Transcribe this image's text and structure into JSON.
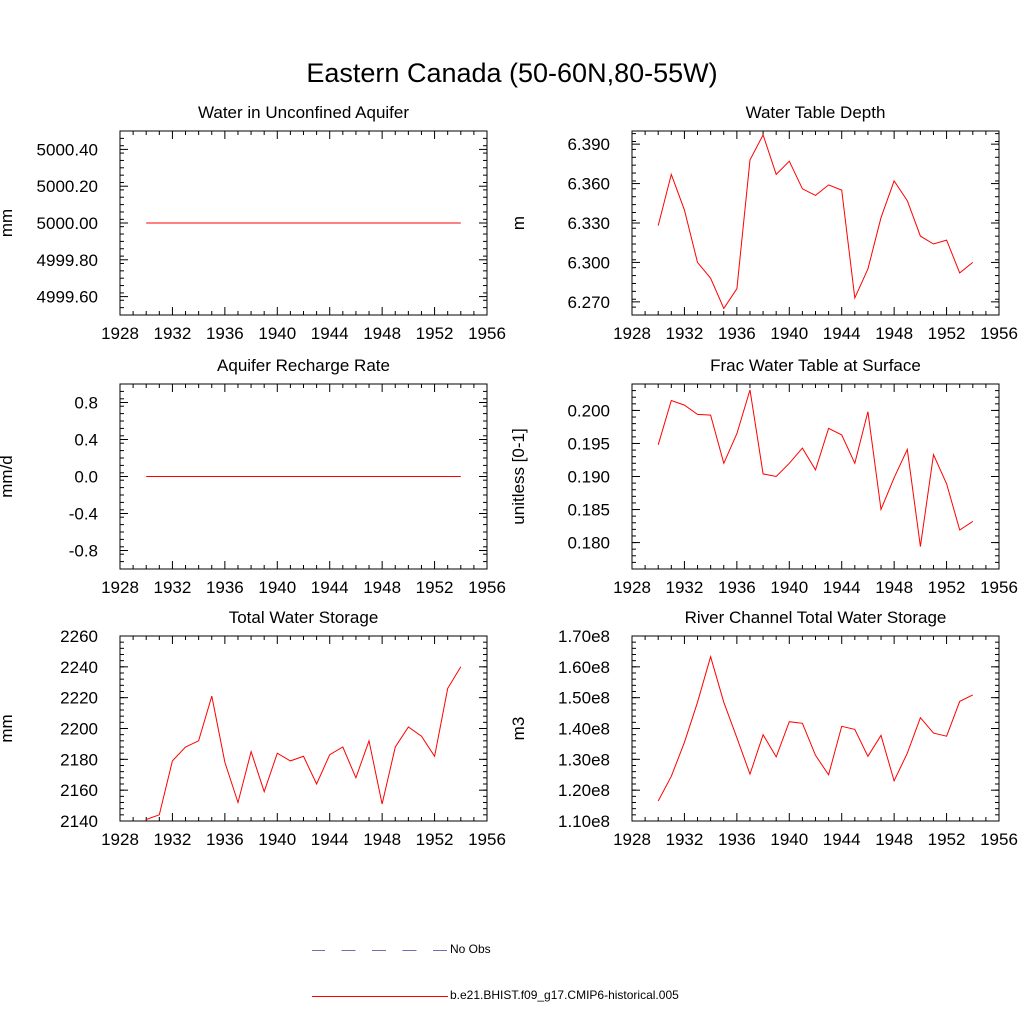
{
  "title": "Eastern Canada (50-60N,80-55W)",
  "colors": {
    "model": "#ff0000",
    "obs": "#6f6fb0",
    "axis": "#000000"
  },
  "legend": {
    "obs_label": "No Obs",
    "model_label": "b.e21.BHIST.f09_g17.CMIP6-historical.005"
  },
  "chart_data": [
    {
      "type": "line",
      "title": "Water in Unconfined Aquifer",
      "xlabel": "",
      "ylabel": "mm",
      "xlim": [
        1928,
        1956
      ],
      "ylim": [
        4999.5,
        5000.5
      ],
      "xticks": [
        1928,
        1932,
        1936,
        1940,
        1944,
        1948,
        1952,
        1956
      ],
      "yticks": [
        4999.6,
        4999.8,
        5000.0,
        5000.2,
        5000.4
      ],
      "ytick_labels": [
        "4999.60",
        "4999.80",
        "5000.00",
        "5000.20",
        "5000.40"
      ],
      "x": [
        1930,
        1931,
        1932,
        1933,
        1934,
        1935,
        1936,
        1937,
        1938,
        1939,
        1940,
        1941,
        1942,
        1943,
        1944,
        1945,
        1946,
        1947,
        1948,
        1949,
        1950,
        1951,
        1952,
        1953,
        1954
      ],
      "series": [
        {
          "values": [
            5000,
            5000,
            5000,
            5000,
            5000,
            5000,
            5000,
            5000,
            5000,
            5000,
            5000,
            5000,
            5000,
            5000,
            5000,
            5000,
            5000,
            5000,
            5000,
            5000,
            5000,
            5000,
            5000,
            5000,
            5000
          ]
        }
      ]
    },
    {
      "type": "line",
      "title": "Water Table Depth",
      "xlabel": "",
      "ylabel": "m",
      "xlim": [
        1928,
        1956
      ],
      "ylim": [
        6.26,
        6.4
      ],
      "xticks": [
        1928,
        1932,
        1936,
        1940,
        1944,
        1948,
        1952,
        1956
      ],
      "yticks": [
        6.27,
        6.3,
        6.33,
        6.36,
        6.39
      ],
      "ytick_labels": [
        "6.270",
        "6.300",
        "6.330",
        "6.360",
        "6.390"
      ],
      "x": [
        1930,
        1931,
        1932,
        1933,
        1934,
        1935,
        1936,
        1937,
        1938,
        1939,
        1940,
        1941,
        1942,
        1943,
        1944,
        1945,
        1946,
        1947,
        1948,
        1949,
        1950,
        1951,
        1952,
        1953,
        1954
      ],
      "series": [
        {
          "values": [
            6.328,
            6.367,
            6.34,
            6.3,
            6.288,
            6.265,
            6.28,
            6.378,
            6.397,
            6.367,
            6.377,
            6.356,
            6.351,
            6.359,
            6.355,
            6.273,
            6.295,
            6.334,
            6.362,
            6.347,
            6.32,
            6.314,
            6.317,
            6.292,
            6.3
          ]
        }
      ]
    },
    {
      "type": "line",
      "title": "Aquifer Recharge Rate",
      "xlabel": "",
      "ylabel": "mm/d",
      "xlim": [
        1928,
        1956
      ],
      "ylim": [
        -1.0,
        1.0
      ],
      "xticks": [
        1928,
        1932,
        1936,
        1940,
        1944,
        1948,
        1952,
        1956
      ],
      "yticks": [
        -0.8,
        -0.4,
        0.0,
        0.4,
        0.8
      ],
      "ytick_labels": [
        "-0.8",
        "-0.4",
        "0.0",
        "0.4",
        "0.8"
      ],
      "x": [
        1930,
        1931,
        1932,
        1933,
        1934,
        1935,
        1936,
        1937,
        1938,
        1939,
        1940,
        1941,
        1942,
        1943,
        1944,
        1945,
        1946,
        1947,
        1948,
        1949,
        1950,
        1951,
        1952,
        1953,
        1954
      ],
      "series": [
        {
          "values": [
            0,
            0,
            0,
            0,
            0,
            0,
            0,
            0,
            0,
            0,
            0,
            0,
            0,
            0,
            0,
            0,
            0,
            0,
            0,
            0,
            0,
            0,
            0,
            0,
            0
          ]
        }
      ]
    },
    {
      "type": "line",
      "title": "Frac Water Table at Surface",
      "xlabel": "",
      "ylabel": "unitless [0-1]",
      "xlim": [
        1928,
        1956
      ],
      "ylim": [
        0.176,
        0.204
      ],
      "xticks": [
        1928,
        1932,
        1936,
        1940,
        1944,
        1948,
        1952,
        1956
      ],
      "yticks": [
        0.18,
        0.185,
        0.19,
        0.195,
        0.2
      ],
      "ytick_labels": [
        "0.180",
        "0.185",
        "0.190",
        "0.195",
        "0.200"
      ],
      "x": [
        1930,
        1931,
        1932,
        1933,
        1934,
        1935,
        1936,
        1937,
        1938,
        1939,
        1940,
        1941,
        1942,
        1943,
        1944,
        1945,
        1946,
        1947,
        1948,
        1949,
        1950,
        1951,
        1952,
        1953,
        1954
      ],
      "series": [
        {
          "values": [
            0.1948,
            0.2015,
            0.2008,
            0.1994,
            0.1993,
            0.192,
            0.1965,
            0.2031,
            0.1904,
            0.19,
            0.192,
            0.1943,
            0.191,
            0.1973,
            0.1963,
            0.192,
            0.1998,
            0.185,
            0.1898,
            0.1941,
            0.1794,
            0.1933,
            0.1889,
            0.1819,
            0.1832
          ]
        }
      ]
    },
    {
      "type": "line",
      "title": "Total Water Storage",
      "xlabel": "",
      "ylabel": "mm",
      "xlim": [
        1928,
        1956
      ],
      "ylim": [
        2140,
        2260
      ],
      "xticks": [
        1928,
        1932,
        1936,
        1940,
        1944,
        1948,
        1952,
        1956
      ],
      "yticks": [
        2140,
        2160,
        2180,
        2200,
        2220,
        2240,
        2260
      ],
      "ytick_labels": [
        "2140",
        "2160",
        "2180",
        "2200",
        "2220",
        "2240",
        "2260"
      ],
      "x": [
        1930,
        1931,
        1932,
        1933,
        1934,
        1935,
        1936,
        1937,
        1938,
        1939,
        1940,
        1941,
        1942,
        1943,
        1944,
        1945,
        1946,
        1947,
        1948,
        1949,
        1950,
        1951,
        1952,
        1953,
        1954
      ],
      "series": [
        {
          "values": [
            2141,
            2144,
            2179,
            2188,
            2192,
            2221,
            2178,
            2152,
            2185,
            2159,
            2184,
            2179,
            2182,
            2164,
            2183,
            2188,
            2168,
            2192,
            2151,
            2188,
            2201,
            2195,
            2182,
            2226,
            2240
          ]
        }
      ]
    },
    {
      "type": "line",
      "title": "River Channel Total Water Storage",
      "xlabel": "",
      "ylabel": "m3",
      "xlim": [
        1928,
        1956
      ],
      "ylim": [
        110000000.0,
        170000000.0
      ],
      "xticks": [
        1928,
        1932,
        1936,
        1940,
        1944,
        1948,
        1952,
        1956
      ],
      "yticks": [
        110000000.0,
        120000000.0,
        130000000.0,
        140000000.0,
        150000000.0,
        160000000.0,
        170000000.0
      ],
      "ytick_labels": [
        "1.10e8",
        "1.20e8",
        "1.30e8",
        "1.40e8",
        "1.50e8",
        "1.60e8",
        "1.70e8"
      ],
      "x": [
        1930,
        1931,
        1932,
        1933,
        1934,
        1935,
        1936,
        1937,
        1938,
        1939,
        1940,
        1941,
        1942,
        1943,
        1944,
        1945,
        1946,
        1947,
        1948,
        1949,
        1950,
        1951,
        1952,
        1953,
        1954
      ],
      "series": [
        {
          "values": [
            116500000.0,
            124500000.0,
            135500000.0,
            148500000.0,
            163300000.0,
            148500000.0,
            137000000.0,
            125200000.0,
            138000000.0,
            130800000.0,
            142200000.0,
            141700000.0,
            131300000.0,
            125000000.0,
            140700000.0,
            139700000.0,
            131000000.0,
            137800000.0,
            123000000.0,
            132000000.0,
            143500000.0,
            138500000.0,
            137500000.0,
            148800000.0,
            150900000.0
          ]
        }
      ]
    }
  ]
}
